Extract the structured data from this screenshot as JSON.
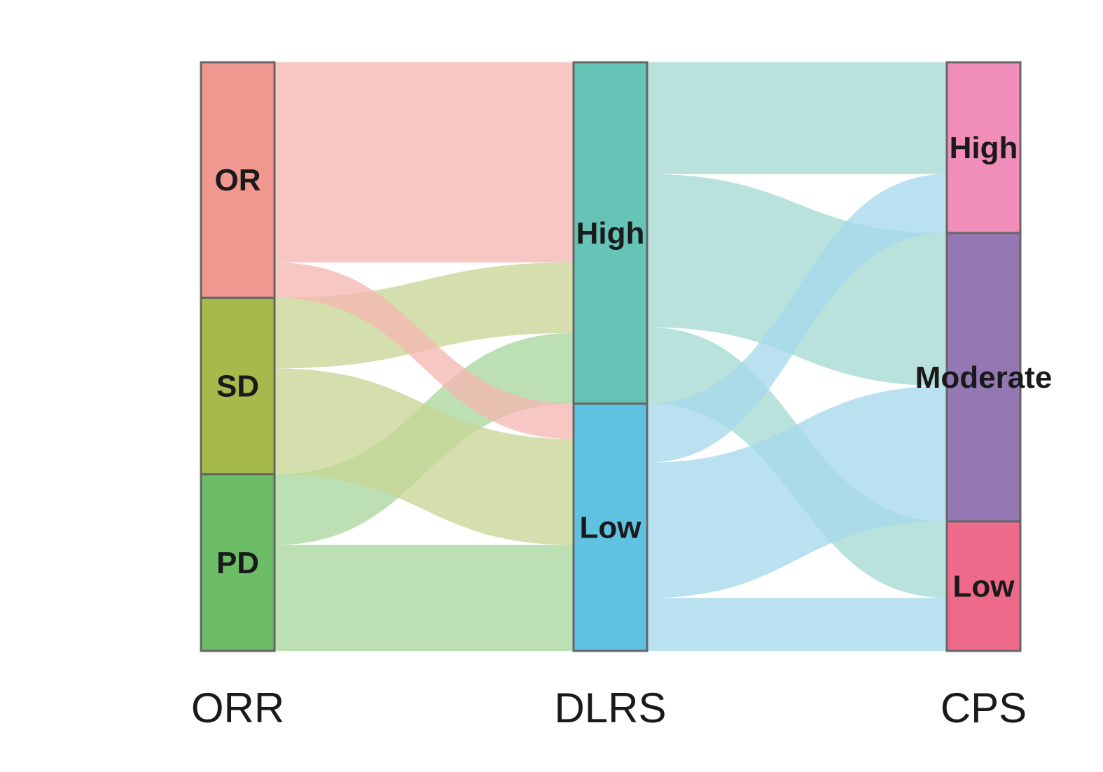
{
  "chart_data": {
    "type": "sankey",
    "title": "",
    "axes": [
      {
        "name": "ORR",
        "nodes": [
          {
            "id": "OR",
            "label": "OR",
            "color": "#F0978F"
          },
          {
            "id": "SD",
            "label": "SD",
            "color": "#A6BA4C"
          },
          {
            "id": "PD",
            "label": "PD",
            "color": "#6CBD66"
          }
        ]
      },
      {
        "name": "DLRS",
        "nodes": [
          {
            "id": "DH",
            "label": "High",
            "color": "#66C4B6"
          },
          {
            "id": "DL",
            "label": "Low",
            "color": "#5FC2E0"
          }
        ]
      },
      {
        "name": "CPS",
        "nodes": [
          {
            "id": "CH",
            "label": "High",
            "color": "#F08DB8"
          },
          {
            "id": "CM",
            "label": "Moderate",
            "color": "#9478B3"
          },
          {
            "id": "CL",
            "label": "Low",
            "color": "#EE6A8A"
          }
        ]
      }
    ],
    "node_order": [
      [
        "OR",
        "SD",
        "PD"
      ],
      [
        "DH",
        "DL"
      ],
      [
        "CH",
        "CM",
        "CL"
      ]
    ],
    "flows_orr_to_dlrs": [
      {
        "source": "OR",
        "target": "DH",
        "value": 34,
        "color": "#F4B7B2"
      },
      {
        "source": "SD",
        "target": "DH",
        "value": 12,
        "color": "#C8D696"
      },
      {
        "source": "PD",
        "target": "DH",
        "value": 12,
        "color": "#A9D69D"
      },
      {
        "source": "OR",
        "target": "DL",
        "value": 6,
        "color": "#F4B7B2"
      },
      {
        "source": "SD",
        "target": "DL",
        "value": 18,
        "color": "#C8D696"
      },
      {
        "source": "PD",
        "target": "DL",
        "value": 18,
        "color": "#A9D69D"
      }
    ],
    "flows_dlrs_to_cps": [
      {
        "source": "DH",
        "target": "CH",
        "value": 19,
        "color": "#A7DAD3"
      },
      {
        "source": "DH",
        "target": "CM",
        "value": 26,
        "color": "#A7DAD3"
      },
      {
        "source": "DH",
        "target": "CL",
        "value": 13,
        "color": "#A7DAD3"
      },
      {
        "source": "DL",
        "target": "CH",
        "value": 10,
        "color": "#A6D8EC"
      },
      {
        "source": "DL",
        "target": "CM",
        "value": 23,
        "color": "#A6D8EC"
      },
      {
        "source": "DL",
        "target": "CL",
        "value": 9,
        "color": "#A6D8EC"
      }
    ]
  }
}
